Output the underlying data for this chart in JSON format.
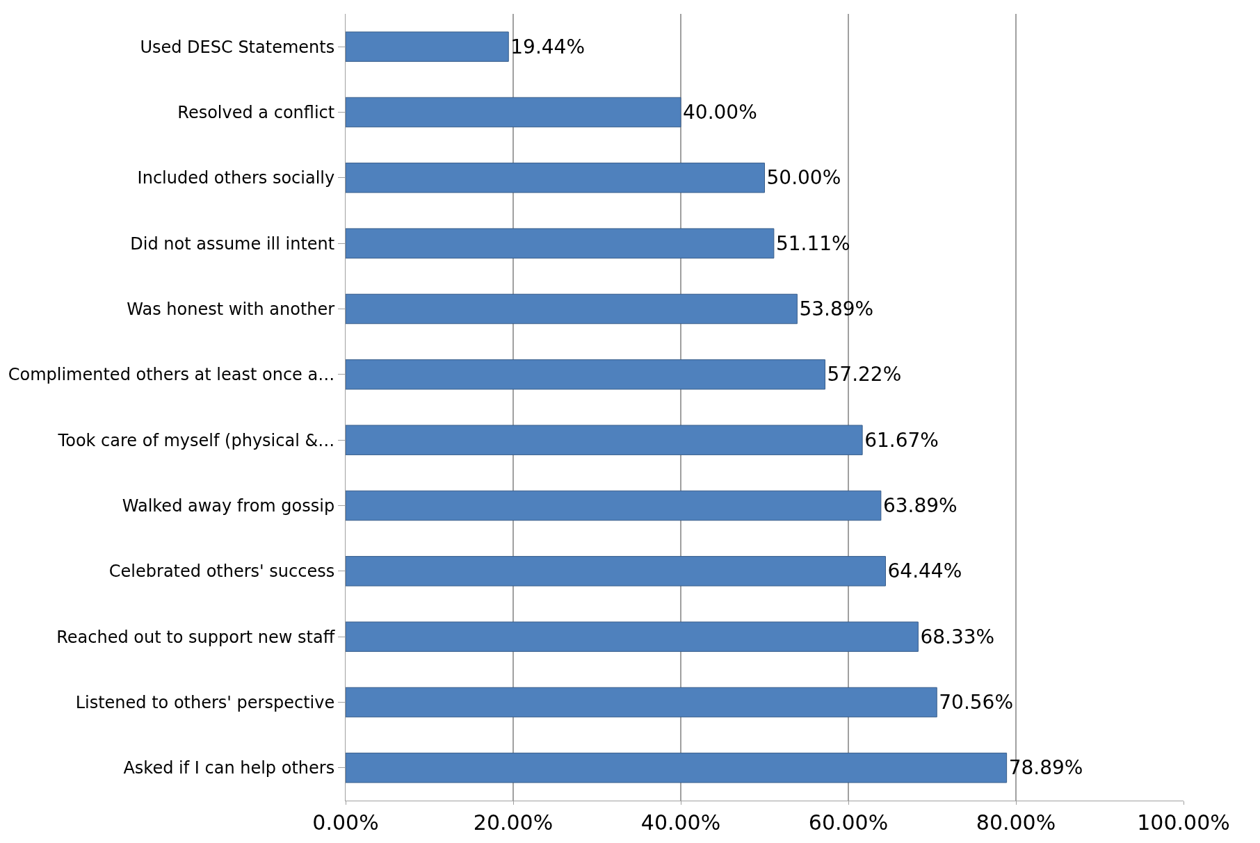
{
  "chart_data": {
    "type": "bar",
    "orientation": "horizontal",
    "categories": [
      "Used DESC Statements",
      "Resolved a conflict",
      "Included others socially",
      "Did not assume ill intent",
      "Was honest with another",
      "Complimented others at least once a…",
      "Took care of myself (physical &…",
      "Walked away from gossip",
      "Celebrated others' success",
      "Reached out to support new staff",
      "Listened to others' perspective",
      "Asked if I can help others"
    ],
    "values": [
      19.44,
      40.0,
      50.0,
      51.11,
      53.89,
      57.22,
      61.67,
      63.89,
      64.44,
      68.33,
      70.56,
      78.89
    ],
    "value_labels": [
      "19.44%",
      "40.00%",
      "50.00%",
      "51.11%",
      "53.89%",
      "57.22%",
      "61.67%",
      "63.89%",
      "64.44%",
      "68.33%",
      "70.56%",
      "78.89%"
    ],
    "color": "#4f81bd",
    "xlim": [
      0,
      100
    ],
    "xticks": [
      {
        "value": 0,
        "label": "0.00%"
      },
      {
        "value": 20,
        "label": "20.00%"
      },
      {
        "value": 40,
        "label": "40.00%"
      },
      {
        "value": 60,
        "label": "60.00%"
      },
      {
        "value": 80,
        "label": "80.00%"
      },
      {
        "value": 100,
        "label": "100.00%"
      }
    ],
    "grid": "x",
    "legend": false
  }
}
